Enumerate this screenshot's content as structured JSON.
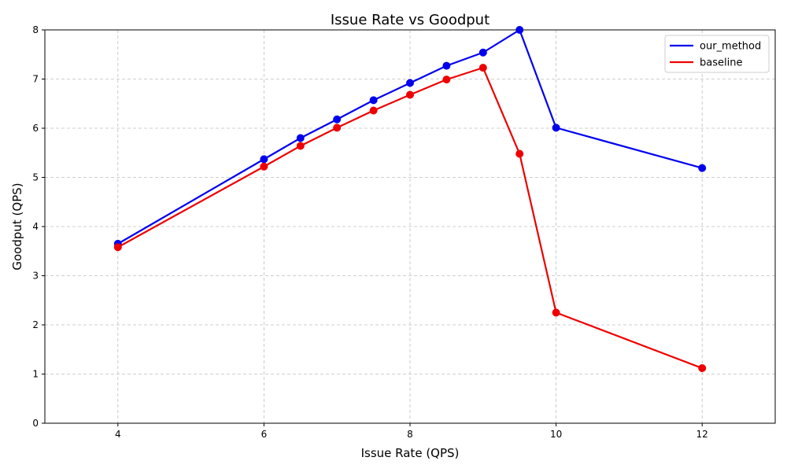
{
  "chart_data": {
    "type": "line",
    "title": "Issue Rate vs Goodput",
    "xlabel": "Issue Rate (QPS)",
    "ylabel": "Goodput (QPS)",
    "xlim": [
      3,
      13
    ],
    "ylim": [
      0,
      8
    ],
    "xticks": [
      4,
      6,
      8,
      10,
      12
    ],
    "yticks": [
      0,
      1,
      2,
      3,
      4,
      5,
      6,
      7,
      8
    ],
    "grid": true,
    "legend_position": "top-right",
    "series": [
      {
        "name": "our_method",
        "color": "#0000ee",
        "x": [
          4,
          6,
          6.5,
          7,
          7.5,
          8,
          8.5,
          9,
          9.5,
          10,
          12
        ],
        "y": [
          3.65,
          5.37,
          5.8,
          6.18,
          6.57,
          6.92,
          7.27,
          7.54,
          8.0,
          6.01,
          5.19
        ]
      },
      {
        "name": "baseline",
        "color": "#ee0000",
        "x": [
          4,
          6,
          6.5,
          7,
          7.5,
          8,
          8.5,
          9,
          9.5,
          10,
          12
        ],
        "y": [
          3.58,
          5.22,
          5.64,
          6.01,
          6.36,
          6.68,
          6.99,
          7.23,
          5.48,
          2.25,
          1.12
        ]
      }
    ]
  }
}
